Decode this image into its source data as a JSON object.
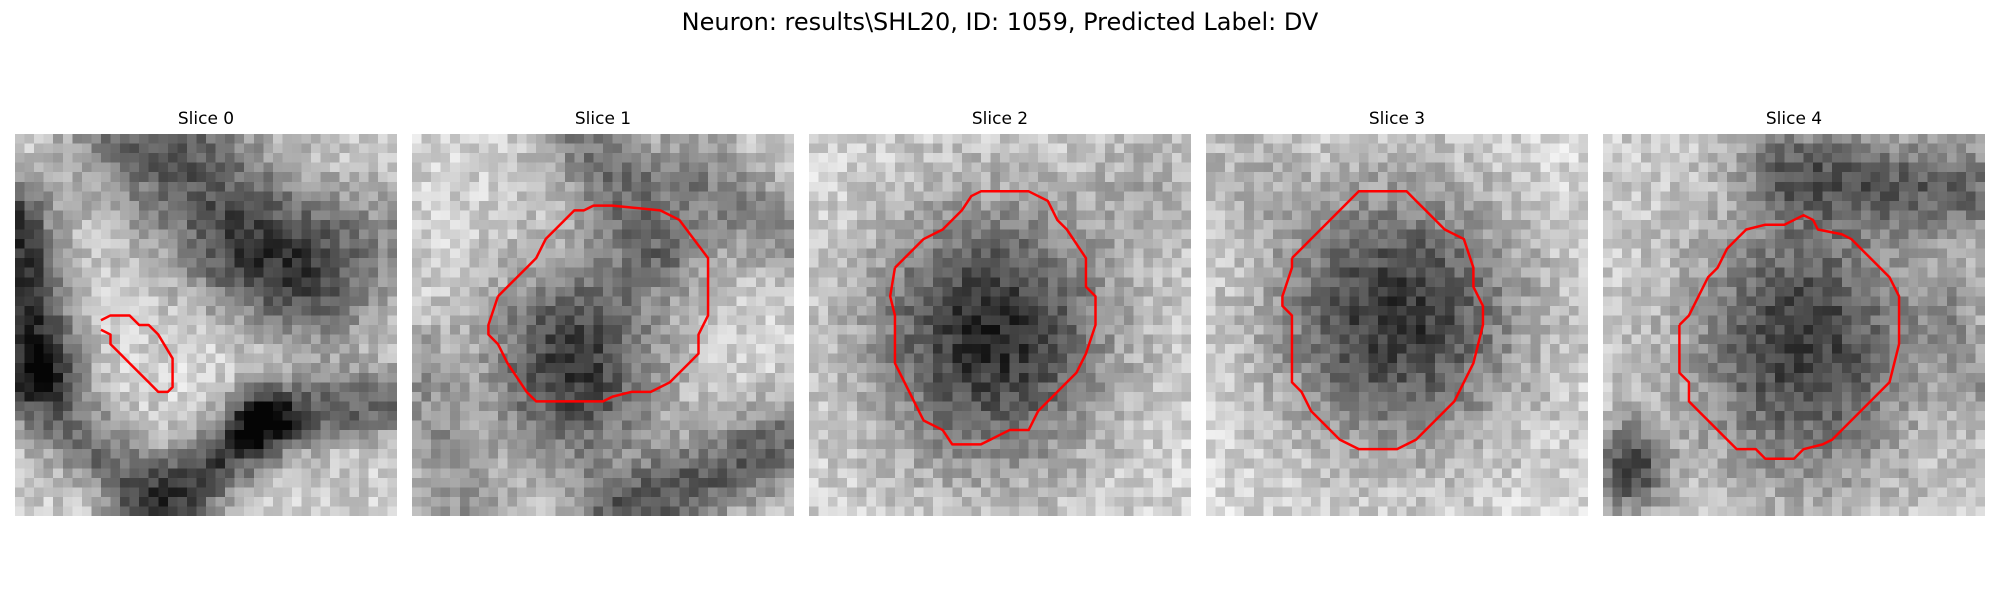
{
  "figure": {
    "title": "Neuron: results\\SHL20, ID: 1059, Predicted Label: DV"
  },
  "colors": {
    "background": "#ffffff",
    "contour": "#ff0000"
  },
  "panels": [
    {
      "title": "Slice 0"
    },
    {
      "title": "Slice 1"
    },
    {
      "title": "Slice 2"
    },
    {
      "title": "Slice 3"
    },
    {
      "title": "Slice 4"
    }
  ]
}
